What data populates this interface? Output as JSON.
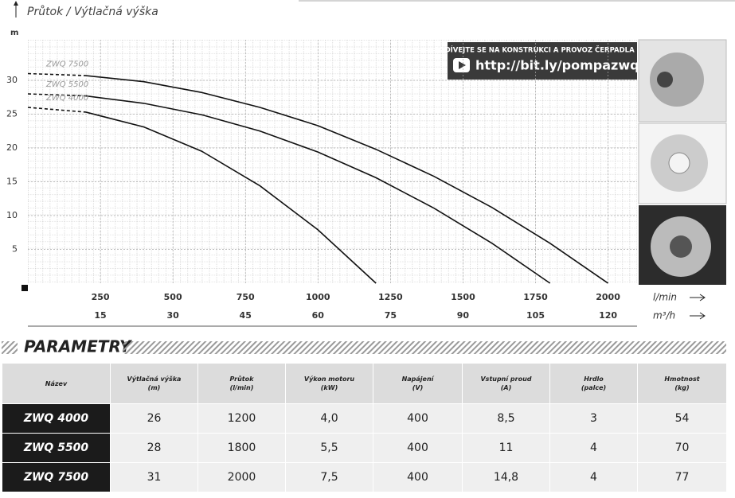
{
  "chart_data": {
    "type": "line",
    "title": "Průtok / Výtlačná výška",
    "y_unit": "m",
    "x_label": "l/min",
    "x2_label": "m³/h",
    "x": [
      0,
      200,
      400,
      600,
      800,
      1000,
      1200,
      1400,
      1600,
      1800,
      2000
    ],
    "series": [
      {
        "name": "ZWQ 7500",
        "color": "#111111",
        "values": [
          31,
          30.7,
          29.8,
          28.2,
          26.0,
          23.3,
          19.8,
          15.8,
          11.2,
          5.9,
          0
        ]
      },
      {
        "name": "ZWQ 5500",
        "color": "#111111",
        "values": [
          28,
          27.7,
          26.6,
          24.9,
          22.5,
          19.4,
          15.6,
          11.1,
          5.9,
          0,
          null
        ]
      },
      {
        "name": "ZWQ 4000",
        "color": "#111111",
        "values": [
          26,
          25.3,
          23.1,
          19.5,
          14.4,
          7.9,
          0,
          null,
          null,
          null,
          null
        ]
      }
    ],
    "xlim": [
      0,
      2100
    ],
    "xticks": [
      250,
      500,
      750,
      1000,
      1250,
      1500,
      1750,
      2000
    ],
    "x2lim": [
      0,
      126
    ],
    "x2ticks": [
      15,
      30,
      45,
      60,
      75,
      90,
      105,
      120
    ],
    "ylim": [
      0,
      36
    ],
    "yticks": [
      5,
      10,
      15,
      20,
      25,
      30
    ],
    "grid": true
  },
  "banner": {
    "line1": "PODÍVEJTE SE NA KONSTRUKCI A PROVOZ ČERPADLA NA:",
    "url": "http://bit.ly/pompazwq"
  },
  "section_title": "PARAMETRY",
  "table": {
    "columns": [
      {
        "label": "Název",
        "unit": ""
      },
      {
        "label": "Výtlačná výška",
        "unit": "(m)"
      },
      {
        "label": "Průtok",
        "unit": "(l/min)"
      },
      {
        "label": "Výkon motoru",
        "unit": "(kW)"
      },
      {
        "label": "Napájení",
        "unit": "(V)"
      },
      {
        "label": "Vstupní proud",
        "unit": "(A)"
      },
      {
        "label": "Hrdlo",
        "unit": "(palce)"
      },
      {
        "label": "Hmotnost",
        "unit": "(kg)"
      }
    ],
    "rows": [
      [
        "ZWQ 4000",
        "26",
        "1200",
        "4,0",
        "400",
        "8,5",
        "3",
        "54"
      ],
      [
        "ZWQ 5500",
        "28",
        "1800",
        "5,5",
        "400",
        "11",
        "4",
        "70"
      ],
      [
        "ZWQ 7500",
        "31",
        "2000",
        "7,5",
        "400",
        "14,8",
        "4",
        "77"
      ]
    ]
  }
}
